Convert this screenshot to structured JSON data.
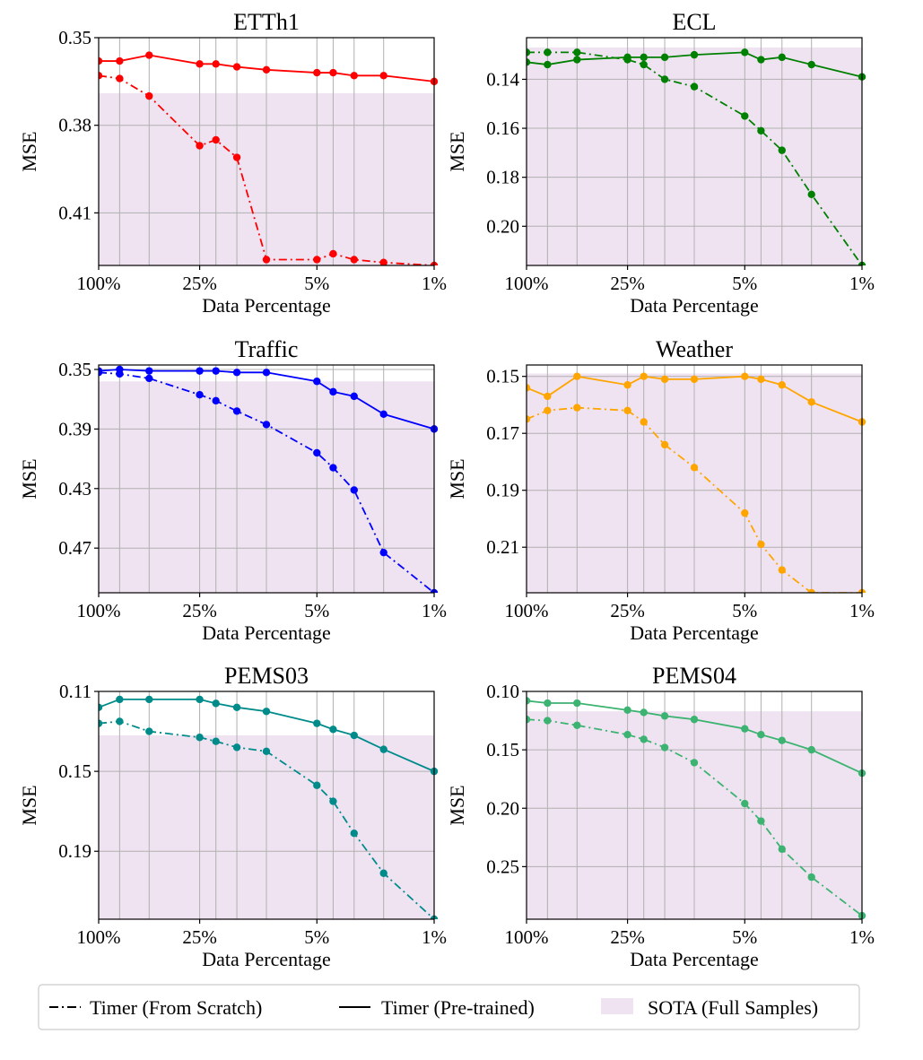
{
  "figure": {
    "x_axis": {
      "label": "Data Percentage",
      "tick_labels": [
        "100%",
        "25%",
        "5%",
        "1%"
      ],
      "tick_values": [
        100,
        25,
        5,
        1
      ],
      "grid_values": [
        100,
        75,
        50,
        25,
        20,
        15,
        10,
        5,
        4,
        3,
        2,
        1
      ]
    },
    "y_label": "MSE",
    "legend": {
      "scratch": "Timer (From Scratch)",
      "pretrained": "Timer (Pre-trained)",
      "sota": "SOTA (Full Samples)"
    },
    "sota_color": "#efe3f2"
  },
  "chart_data": [
    {
      "type": "line",
      "title": "ETTh1",
      "color": "#ff0000",
      "xlabel": "Data Percentage",
      "ylabel": "MSE",
      "ylim": [
        0.35,
        0.428
      ],
      "yticks": [
        0.35,
        0.38,
        0.41
      ],
      "tick_format": "%.2f",
      "sota": 0.369,
      "x": [
        100,
        75,
        50,
        25,
        20,
        15,
        10,
        5,
        4,
        3,
        2,
        1
      ],
      "series": [
        {
          "name": "Timer (Pre-trained)",
          "style": "solid",
          "values": [
            0.358,
            0.358,
            0.356,
            0.359,
            0.359,
            0.36,
            0.361,
            0.362,
            0.362,
            0.363,
            0.363,
            0.365
          ]
        },
        {
          "name": "Timer (From Scratch)",
          "style": "dashdot",
          "values": [
            0.363,
            0.364,
            0.37,
            0.387,
            0.385,
            0.391,
            0.426,
            0.426,
            0.424,
            0.426,
            0.427,
            0.428
          ]
        }
      ]
    },
    {
      "type": "line",
      "title": "ECL",
      "color": "#008000",
      "xlabel": "Data Percentage",
      "ylabel": "MSE",
      "ylim": [
        0.123,
        0.216
      ],
      "yticks": [
        0.14,
        0.16,
        0.18,
        0.2
      ],
      "tick_format": "%.2f",
      "sota": 0.127,
      "x": [
        100,
        75,
        50,
        25,
        20,
        15,
        10,
        5,
        4,
        3,
        2,
        1
      ],
      "series": [
        {
          "name": "Timer (Pre-trained)",
          "style": "solid",
          "values": [
            0.133,
            0.134,
            0.132,
            0.131,
            0.131,
            0.131,
            0.13,
            0.129,
            0.132,
            0.131,
            0.134,
            0.139
          ]
        },
        {
          "name": "Timer (From Scratch)",
          "style": "dashdot",
          "values": [
            0.129,
            0.129,
            0.129,
            0.132,
            0.134,
            0.14,
            0.143,
            0.155,
            0.161,
            0.169,
            0.187,
            0.216
          ]
        }
      ]
    },
    {
      "type": "line",
      "title": "Traffic",
      "color": "#0000ff",
      "xlabel": "Data Percentage",
      "ylabel": "MSE",
      "ylim": [
        0.347,
        0.5
      ],
      "yticks": [
        0.35,
        0.39,
        0.43,
        0.47
      ],
      "tick_format": "%.2f",
      "sota": 0.358,
      "x": [
        100,
        75,
        50,
        25,
        20,
        15,
        10,
        5,
        4,
        3,
        2,
        1
      ],
      "series": [
        {
          "name": "Timer (Pre-trained)",
          "style": "solid",
          "values": [
            0.351,
            0.35,
            0.351,
            0.351,
            0.351,
            0.352,
            0.352,
            0.358,
            0.365,
            0.368,
            0.38,
            0.39
          ]
        },
        {
          "name": "Timer (From Scratch)",
          "style": "dashdot",
          "values": [
            0.352,
            0.353,
            0.356,
            0.367,
            0.371,
            0.378,
            0.387,
            0.406,
            0.416,
            0.431,
            0.473,
            0.5
          ]
        }
      ]
    },
    {
      "type": "line",
      "title": "Weather",
      "color": "#ffa500",
      "xlabel": "Data Percentage",
      "ylabel": "MSE",
      "ylim": [
        0.146,
        0.226
      ],
      "yticks": [
        0.15,
        0.17,
        0.19,
        0.21
      ],
      "tick_format": "%.2f",
      "sota": 0.149,
      "x": [
        100,
        75,
        50,
        25,
        20,
        15,
        10,
        5,
        4,
        3,
        2,
        1
      ],
      "series": [
        {
          "name": "Timer (Pre-trained)",
          "style": "solid",
          "values": [
            0.154,
            0.157,
            0.15,
            0.153,
            0.15,
            0.151,
            0.151,
            0.15,
            0.151,
            0.153,
            0.159,
            0.166
          ]
        },
        {
          "name": "Timer (From Scratch)",
          "style": "dashdot",
          "values": [
            0.165,
            0.162,
            0.161,
            0.162,
            0.166,
            0.174,
            0.182,
            0.198,
            0.209,
            0.218,
            0.226,
            0.226
          ]
        }
      ]
    },
    {
      "type": "line",
      "title": "PEMS03",
      "color": "#008b8b",
      "xlabel": "Data Percentage",
      "ylabel": "MSE",
      "ylim": [
        0.11,
        0.224
      ],
      "yticks": [
        0.11,
        0.15,
        0.19
      ],
      "tick_format": "%.2f",
      "sota": 0.132,
      "x": [
        100,
        75,
        50,
        25,
        20,
        15,
        10,
        5,
        4,
        3,
        2,
        1
      ],
      "series": [
        {
          "name": "Timer (Pre-trained)",
          "style": "solid",
          "values": [
            0.118,
            0.114,
            0.114,
            0.114,
            0.116,
            0.118,
            0.12,
            0.126,
            0.129,
            0.132,
            0.139,
            0.15
          ]
        },
        {
          "name": "Timer (From Scratch)",
          "style": "dashdot",
          "values": [
            0.126,
            0.125,
            0.13,
            0.133,
            0.135,
            0.138,
            0.14,
            0.157,
            0.165,
            0.181,
            0.201,
            0.224
          ]
        }
      ]
    },
    {
      "type": "line",
      "title": "PEMS04",
      "color": "#3cb371",
      "xlabel": "Data Percentage",
      "ylabel": "MSE",
      "ylim": [
        0.1,
        0.295
      ],
      "yticks": [
        0.1,
        0.15,
        0.2,
        0.25
      ],
      "tick_format": "%.2f",
      "sota": 0.117,
      "x": [
        100,
        75,
        50,
        25,
        20,
        15,
        10,
        5,
        4,
        3,
        2,
        1
      ],
      "series": [
        {
          "name": "Timer (Pre-trained)",
          "style": "solid",
          "values": [
            0.108,
            0.11,
            0.11,
            0.116,
            0.118,
            0.121,
            0.124,
            0.132,
            0.137,
            0.142,
            0.15,
            0.17
          ]
        },
        {
          "name": "Timer (From Scratch)",
          "style": "dashdot",
          "values": [
            0.124,
            0.125,
            0.129,
            0.137,
            0.141,
            0.148,
            0.161,
            0.196,
            0.211,
            0.235,
            0.259,
            0.292
          ]
        }
      ]
    }
  ]
}
